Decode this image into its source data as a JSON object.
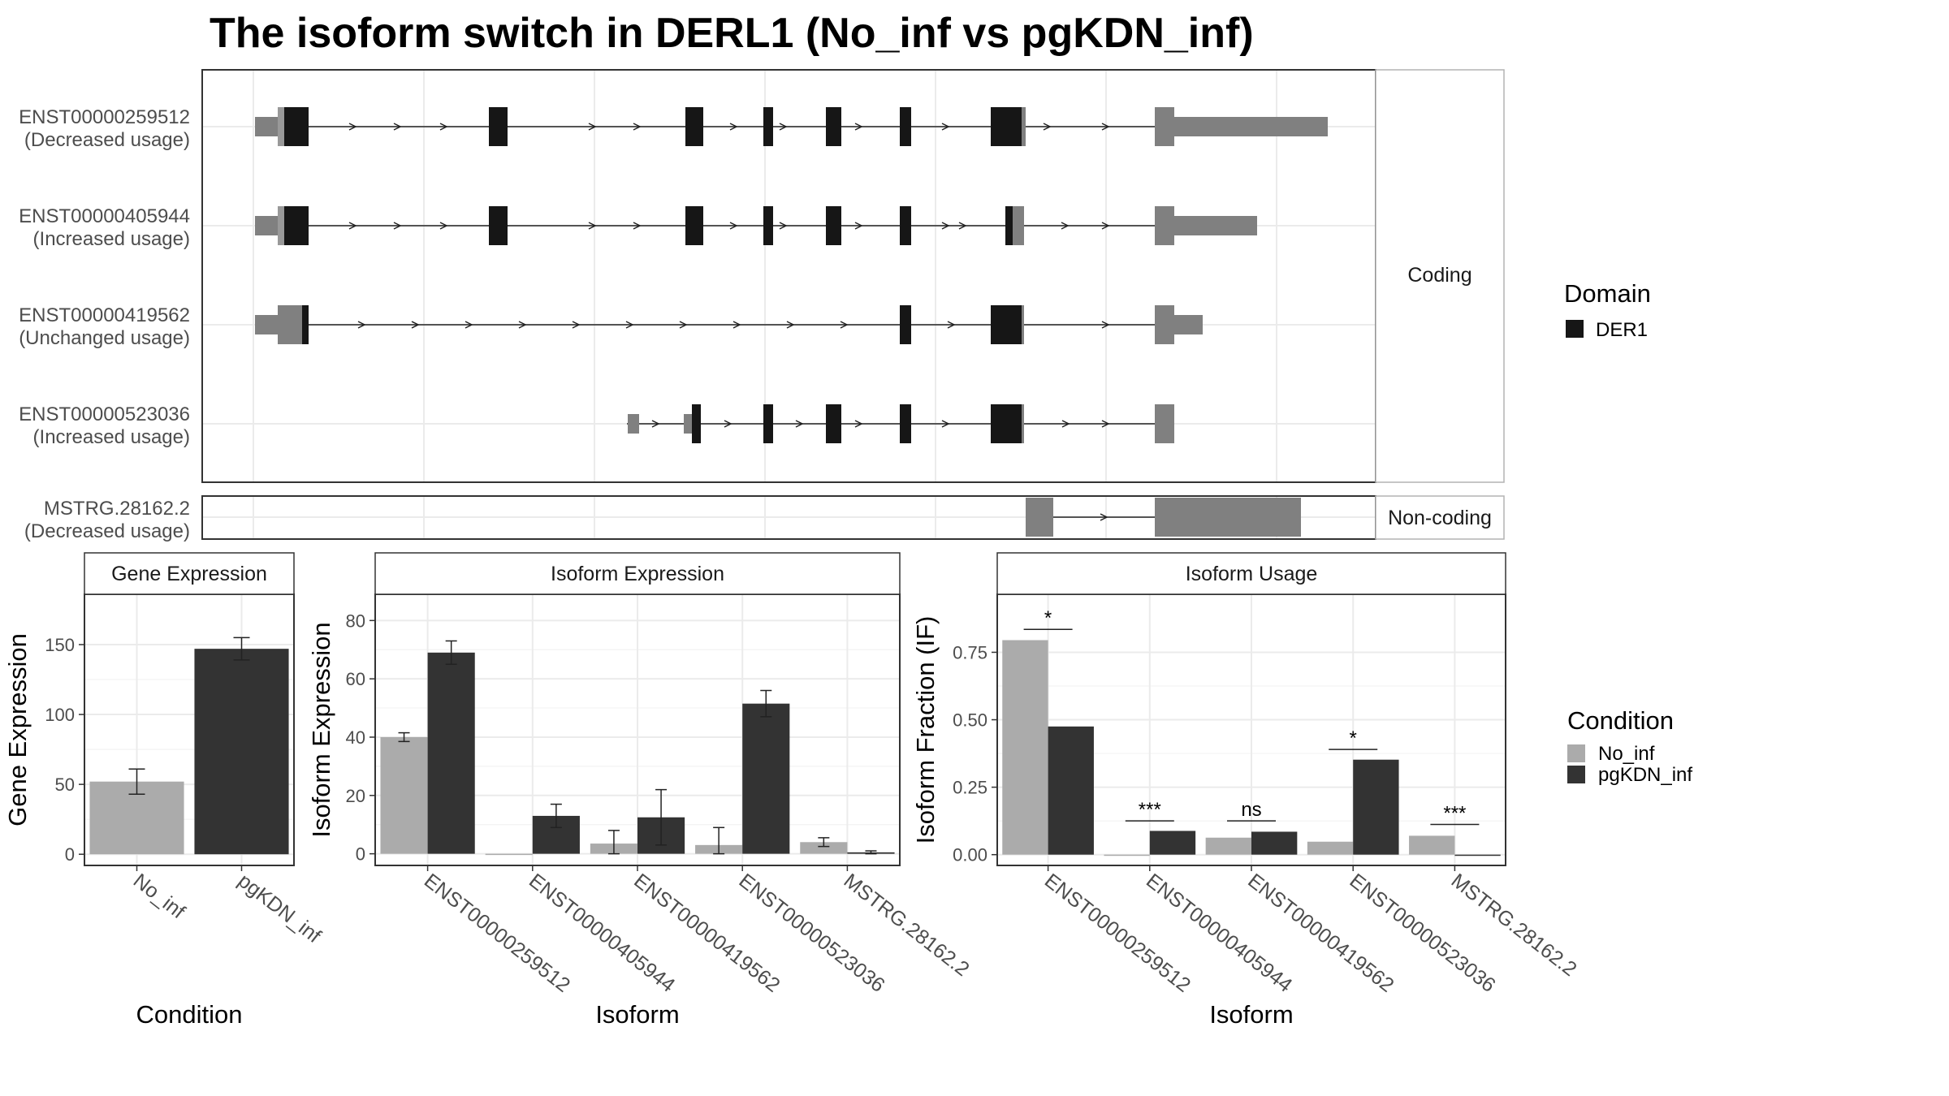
{
  "title": "The isoform switch in DERL1 (No_inf vs pgKDN_inf)",
  "colors": {
    "no_inf": "#ababab",
    "pgkdn_inf": "#333333",
    "utr": "#808080",
    "cds": "#161616",
    "grid": "#ebebeb",
    "panel_border": "#333333",
    "strip_bg": "#ffffff"
  },
  "structure": {
    "coding_label": "Coding",
    "noncoding_label": "Non-coding",
    "domain_legend_title": "Domain",
    "domain_legend_item": "DER1",
    "coding_transcripts": [
      {
        "id": "ENST00000259512",
        "usage": "(Decreased usage)"
      },
      {
        "id": "ENST00000405944",
        "usage": "(Increased usage)"
      },
      {
        "id": "ENST00000419562",
        "usage": "(Unchanged usage)"
      },
      {
        "id": "ENST00000523036",
        "usage": "(Increased usage)"
      }
    ],
    "noncoding_transcripts": [
      {
        "id": "MSTRG.28162.2",
        "usage": "(Decreased usage)"
      }
    ]
  },
  "chart_data": [
    {
      "type": "bar",
      "panel_title": "Gene Expression",
      "xlabel": "Condition",
      "ylabel": "Gene Expression",
      "categories": [
        "No_inf",
        "pgKDN_inf"
      ],
      "values": [
        52,
        147
      ],
      "errors": [
        [
          43,
          61
        ],
        [
          139,
          155
        ]
      ],
      "yticks": [
        0,
        50,
        100,
        150
      ],
      "ylim": [
        -8,
        186
      ]
    },
    {
      "type": "bar",
      "panel_title": "Isoform Expression",
      "xlabel": "Isoform",
      "ylabel": "Isoform Expression",
      "categories": [
        "ENST00000259512",
        "ENST00000405944",
        "ENST00000419562",
        "ENST00000523036",
        "MSTRG.28162.2"
      ],
      "series": [
        {
          "name": "No_inf",
          "values": [
            40,
            0,
            3.5,
            3,
            4
          ],
          "errors": [
            [
              38.5,
              41.5
            ],
            [
              0,
              0
            ],
            [
              0,
              8
            ],
            [
              0,
              9
            ],
            [
              2.5,
              5.5
            ]
          ]
        },
        {
          "name": "pgKDN_inf",
          "values": [
            69,
            13,
            12.5,
            51.5,
            0.5
          ],
          "errors": [
            [
              65,
              73
            ],
            [
              9,
              17
            ],
            [
              3,
              22
            ],
            [
              47,
              56
            ],
            [
              0,
              1
            ]
          ]
        }
      ],
      "yticks": [
        0,
        20,
        40,
        60,
        80
      ],
      "ylim": [
        -4,
        89
      ]
    },
    {
      "type": "bar",
      "panel_title": "Isoform Usage",
      "xlabel": "Isoform",
      "ylabel": "Isoform Fraction (IF)",
      "categories": [
        "ENST00000259512",
        "ENST00000405944",
        "ENST00000419562",
        "ENST00000523036",
        "MSTRG.28162.2"
      ],
      "series": [
        {
          "name": "No_inf",
          "values": [
            0.795,
            0.0,
            0.063,
            0.048,
            0.07
          ]
        },
        {
          "name": "pgKDN_inf",
          "values": [
            0.475,
            0.088,
            0.085,
            0.352,
            0.0
          ]
        }
      ],
      "significance": [
        "*",
        "***",
        "ns",
        "*",
        "***"
      ],
      "significance_y": [
        0.835,
        0.125,
        0.125,
        0.39,
        0.112
      ],
      "yticks": [
        0.0,
        0.25,
        0.5,
        0.75
      ],
      "ytick_labels": [
        "0.00",
        "0.25",
        "0.50",
        "0.75"
      ],
      "ylim": [
        -0.04,
        0.965
      ]
    }
  ],
  "condition_legend": {
    "title": "Condition",
    "items": [
      "No_inf",
      "pgKDN_inf"
    ]
  }
}
